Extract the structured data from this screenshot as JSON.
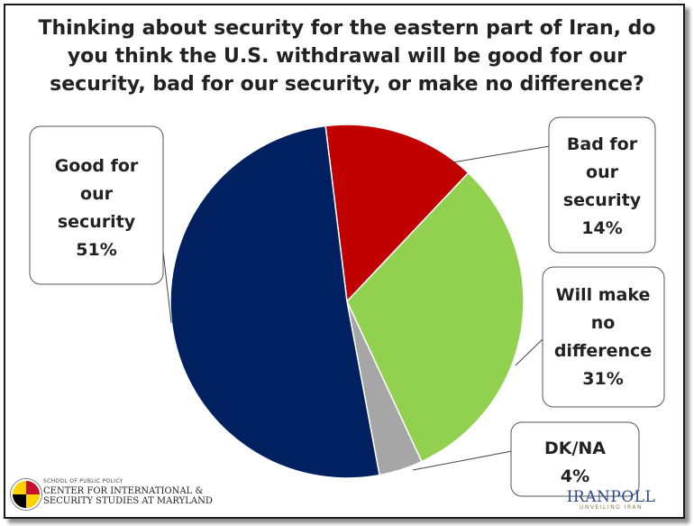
{
  "chart_data": {
    "type": "pie",
    "title": "Thinking about security for the eastern part of Iran, do you think the U.S. withdrawal will be good for our security, bad for our security, or make no difference?",
    "slices": [
      {
        "label_lines": [
          "Bad for",
          "our",
          "security",
          "14%"
        ],
        "value": 14,
        "color": "#c00000"
      },
      {
        "label_lines": [
          "Will make",
          "no",
          "difference",
          "31%"
        ],
        "value": 31,
        "color": "#92d050"
      },
      {
        "label_lines": [
          "DK/NA",
          "4%"
        ],
        "value": 4,
        "color": "#a6a6a6"
      },
      {
        "label_lines": [
          "Good for",
          "our",
          "security",
          "51%"
        ],
        "value": 51,
        "color": "#002060"
      }
    ],
    "start_angle_deg": -7,
    "direction": "clockwise"
  },
  "logos": {
    "left": {
      "school": "SCHOOL OF PUBLIC POLICY",
      "line1": "CENTER FOR INTERNATIONAL &",
      "line2": "SECURITY STUDIES AT MARYLAND"
    },
    "right": {
      "name": "IRANPOLL",
      "tagline": "UNVEILING IRAN"
    }
  }
}
